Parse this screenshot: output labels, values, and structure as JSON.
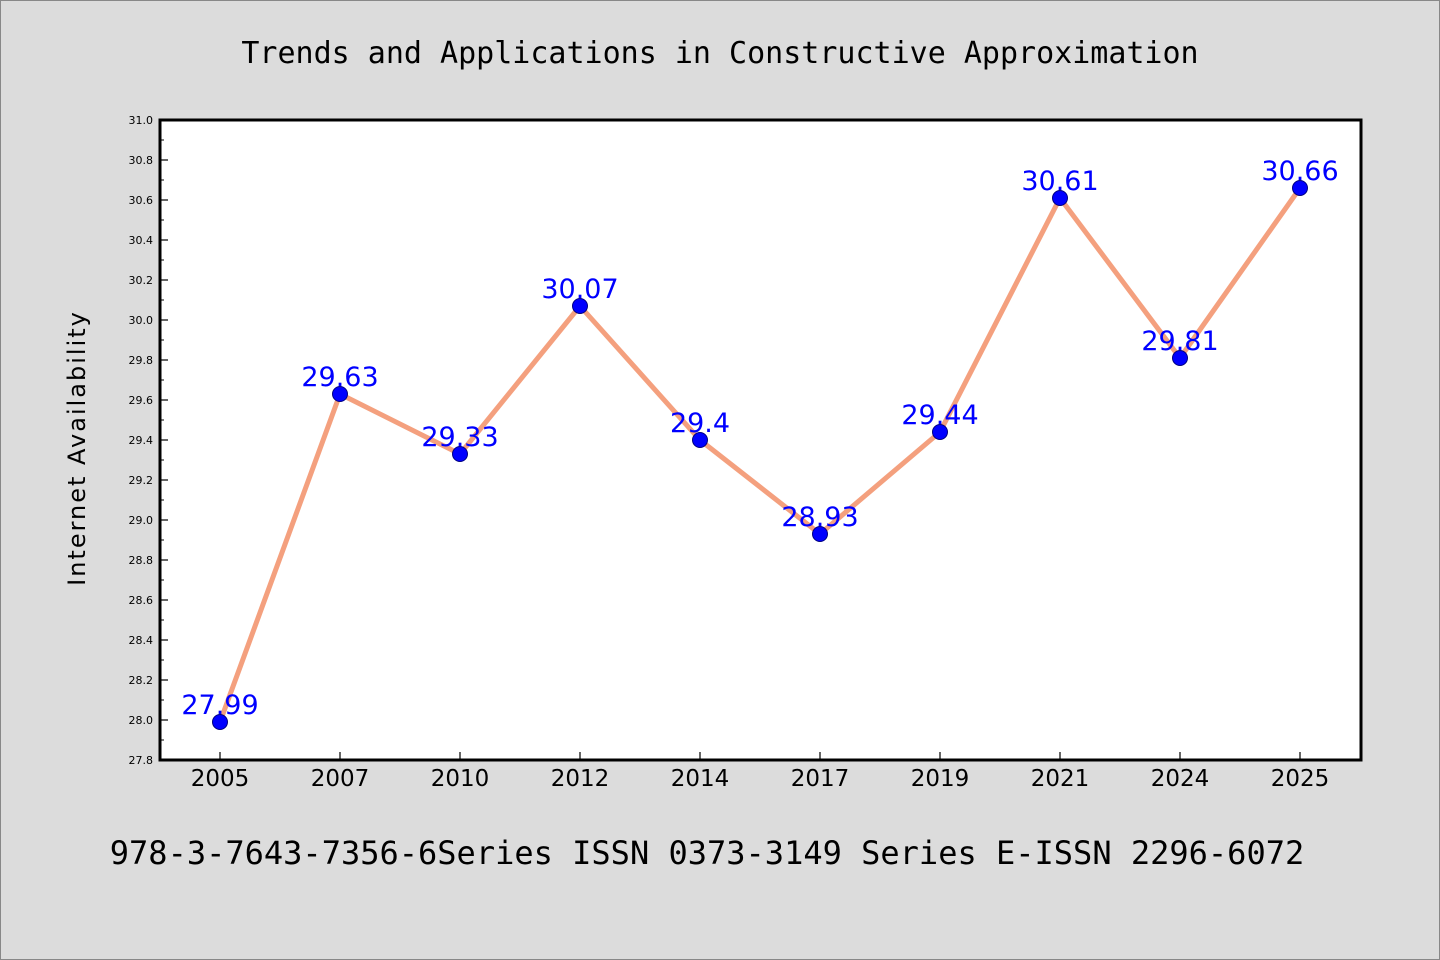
{
  "chart_data": {
    "type": "line",
    "title": "Trends and Applications in Constructive Approximation",
    "xlabel": "",
    "ylabel": "Internet Availability",
    "categories": [
      "2005",
      "2007",
      "2010",
      "2012",
      "2014",
      "2017",
      "2019",
      "2021",
      "2024",
      "2025"
    ],
    "series": [
      {
        "values": [
          27.99,
          29.63,
          29.33,
          30.07,
          29.4,
          28.93,
          29.44,
          30.61,
          29.81,
          30.66
        ],
        "data_labels": [
          "27.99",
          "29.63",
          "29.33",
          "30.07",
          "29.4",
          "28.93",
          "29.44",
          "30.61",
          "29.81",
          "30.66"
        ]
      }
    ],
    "ylim": [
      27.8,
      31.0
    ],
    "y_ticks": [
      "27.8",
      "28.0",
      "28.2",
      "28.4",
      "28.6",
      "28.8",
      "29.0",
      "29.2",
      "29.4",
      "29.6",
      "29.8",
      "30.0",
      "30.2",
      "30.4",
      "30.6",
      "30.8",
      "31.0"
    ],
    "grid": false,
    "legend": "none",
    "colors": {
      "line": "#f4a07e",
      "marker": "#0000ff",
      "marker_edge": "#000080",
      "data_label": "#0000ff",
      "background": "#dcdcdc",
      "plot_background": "#ffffff"
    }
  },
  "footer": {
    "text": "978-3-7643-7356-6Series ISSN 0373-3149 Series E-ISSN 2296-6072"
  }
}
